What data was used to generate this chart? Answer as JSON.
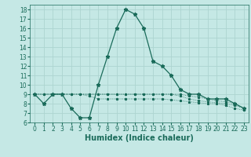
{
  "xlabel": "Humidex (Indice chaleur)",
  "background_color": "#c5e8e5",
  "grid_color": "#add4d0",
  "line_color": "#1a6b5a",
  "xlim": [
    -0.5,
    23.5
  ],
  "ylim": [
    6,
    18.5
  ],
  "yticks": [
    6,
    7,
    8,
    9,
    10,
    11,
    12,
    13,
    14,
    15,
    16,
    17,
    18
  ],
  "xticks": [
    0,
    1,
    2,
    3,
    4,
    5,
    6,
    7,
    8,
    9,
    10,
    11,
    12,
    13,
    14,
    15,
    16,
    17,
    18,
    19,
    20,
    21,
    22,
    23
  ],
  "series_main": [
    9.0,
    8.0,
    9.0,
    9.0,
    7.5,
    6.5,
    6.5,
    10.0,
    13.0,
    16.0,
    18.0,
    17.5,
    16.0,
    12.5,
    12.0,
    11.0,
    9.5,
    9.0,
    9.0,
    8.5,
    8.5,
    8.5,
    8.0,
    7.5
  ],
  "series_flat": [
    [
      9.0,
      9.0,
      9.0,
      9.0,
      9.0,
      9.0,
      9.0,
      9.0,
      9.0,
      9.0,
      9.0,
      9.0,
      9.0,
      9.0,
      9.0,
      9.0,
      9.0,
      8.8,
      8.7,
      8.5,
      8.3,
      8.2,
      8.0,
      7.5
    ],
    [
      9.0,
      9.0,
      9.0,
      9.0,
      9.0,
      9.0,
      9.0,
      9.0,
      9.0,
      9.0,
      9.0,
      9.0,
      9.0,
      9.0,
      9.0,
      9.0,
      8.8,
      8.5,
      8.3,
      8.2,
      8.1,
      8.0,
      7.8,
      7.5
    ],
    [
      9.0,
      9.0,
      9.0,
      9.0,
      9.0,
      9.0,
      8.8,
      8.5,
      8.5,
      8.5,
      8.5,
      8.5,
      8.5,
      8.5,
      8.5,
      8.4,
      8.3,
      8.2,
      8.1,
      8.0,
      8.0,
      7.8,
      7.5,
      7.3
    ]
  ],
  "tick_fontsize": 5.5,
  "xlabel_fontsize": 7
}
